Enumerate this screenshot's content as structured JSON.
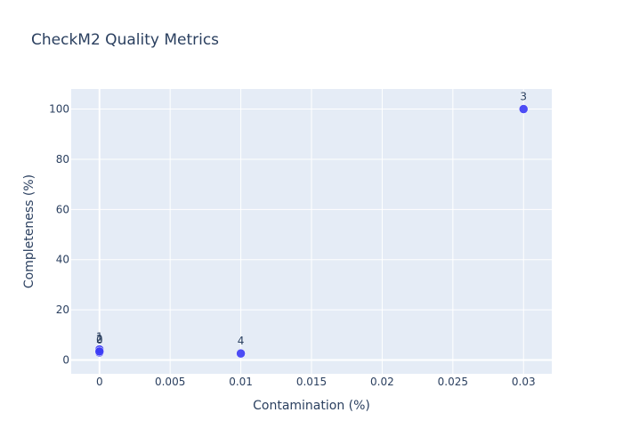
{
  "chart_data": {
    "type": "scatter",
    "title": "CheckM2 Quality Metrics",
    "xlabel": "Contamination (%)",
    "ylabel": "Completeness (%)",
    "xlim": [
      -0.002,
      0.032
    ],
    "ylim": [
      -5.5,
      108
    ],
    "x_ticks": [
      0,
      0.005,
      0.01,
      0.015,
      0.02,
      0.025,
      0.03
    ],
    "x_tick_labels": [
      "0",
      "0.005",
      "0.01",
      "0.015",
      "0.02",
      "0.025",
      "0.03"
    ],
    "y_ticks": [
      0,
      20,
      40,
      60,
      80,
      100
    ],
    "y_tick_labels": [
      "0",
      "20",
      "40",
      "60",
      "80",
      "100"
    ],
    "grid": true,
    "marker_color": "#3b3bf5",
    "plot_bg": "#e5ecf6",
    "points": [
      {
        "label": "0",
        "x": 0,
        "y": 3.0
      },
      {
        "label": "1",
        "x": 0,
        "y": 4.2
      },
      {
        "label": "2",
        "x": 0,
        "y": 3.4
      },
      {
        "label": "3",
        "x": 0.03,
        "y": 100
      },
      {
        "label": "4",
        "x": 0.01,
        "y": 2.6
      }
    ]
  }
}
